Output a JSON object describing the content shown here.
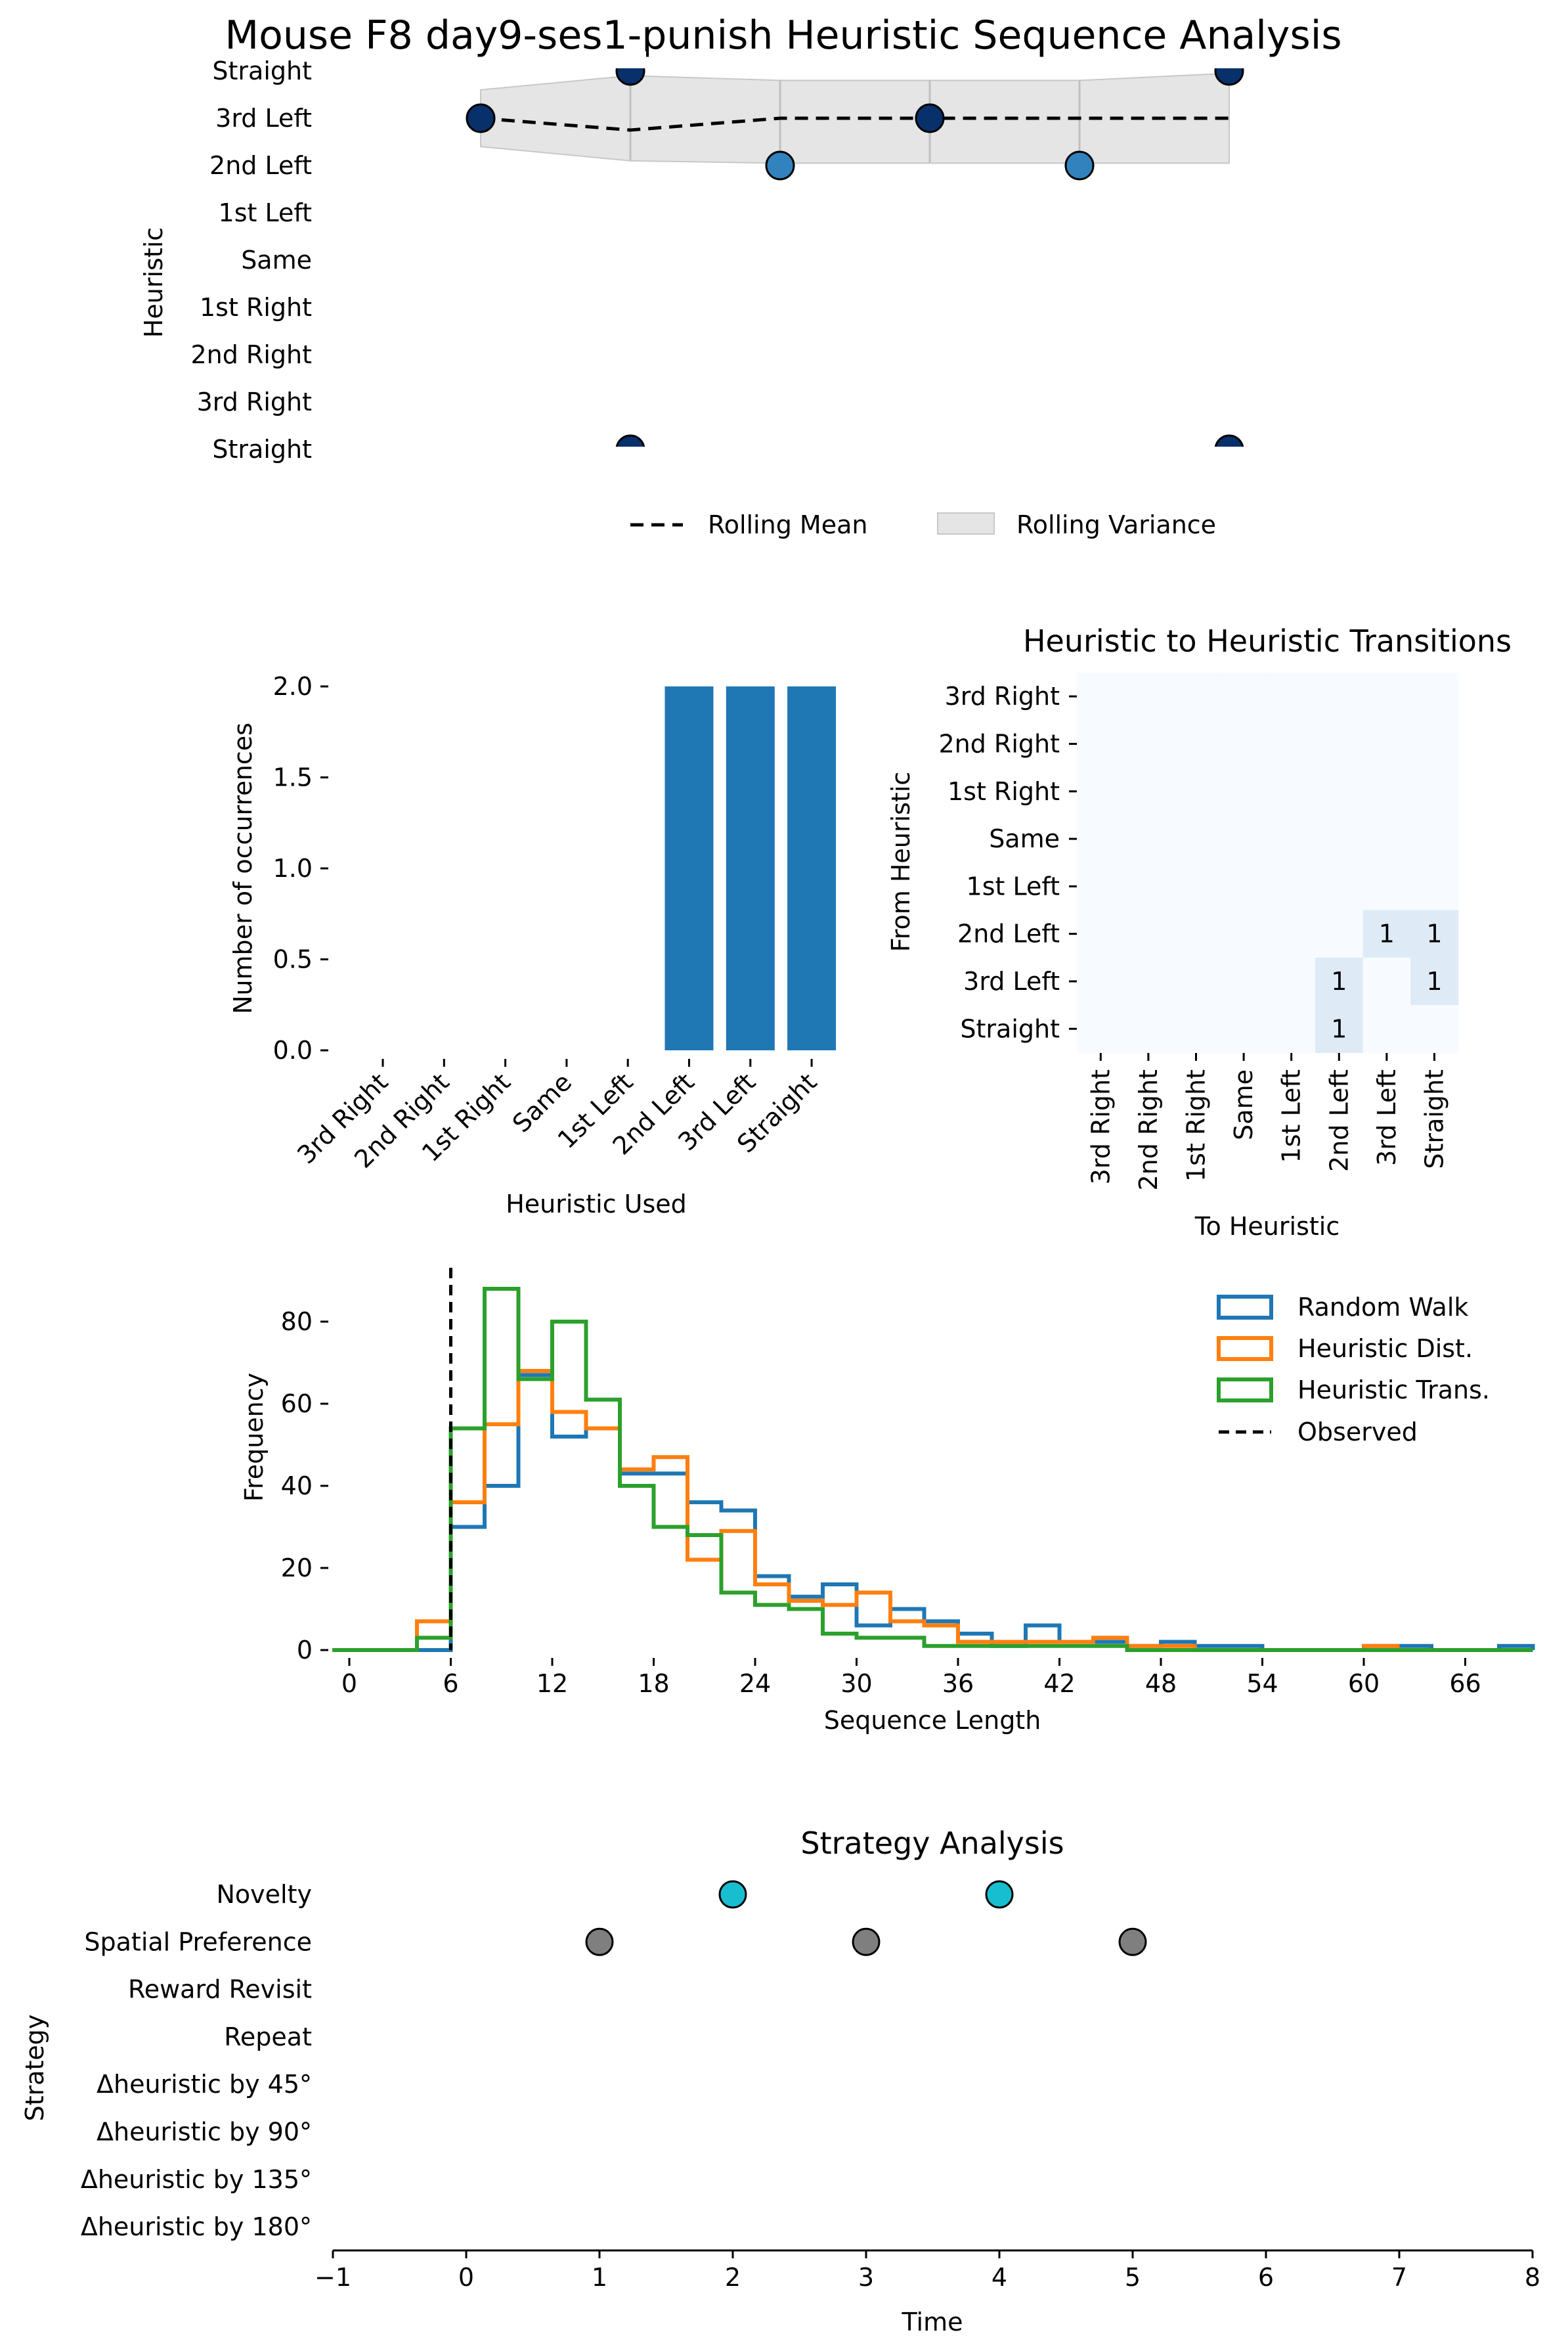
{
  "title": "Mouse F8 day9-ses1-punish Heuristic Sequence Analysis",
  "chart_data": [
    {
      "type": "line",
      "ylabel": "Heuristic",
      "y_categories": [
        "Straight",
        "3rd Left",
        "2nd Left",
        "1st Left",
        "Same",
        "1st Right",
        "2nd Right",
        "3rd Right",
        "Straight"
      ],
      "points": [
        {
          "x": 0,
          "y": "3rd Left",
          "color": "#08306b"
        },
        {
          "x": 1,
          "y": "Straight",
          "color": "#08306b"
        },
        {
          "x": 2,
          "y": "2nd Left",
          "color": "#3182bd"
        },
        {
          "x": 3,
          "y": "3rd Left",
          "color": "#08306b"
        },
        {
          "x": 4,
          "y": "2nd Left",
          "color": "#3182bd"
        },
        {
          "x": 5,
          "y": "Straight",
          "color": "#08306b"
        }
      ],
      "rolling_mean": [
        1.0,
        1.25,
        1.0,
        1.0,
        1.0,
        1.0
      ],
      "rolling_variance": [
        [
          0.4,
          1.6
        ],
        [
          0.1,
          1.9
        ],
        [
          0.2,
          1.95
        ],
        [
          0.2,
          1.95
        ],
        [
          0.2,
          1.95
        ],
        [
          0.05,
          1.95
        ]
      ],
      "legend": [
        "Rolling Mean",
        "Rolling Variance"
      ],
      "legend_position": "bottom-center"
    },
    {
      "type": "bar",
      "xlabel": "Heuristic Used",
      "ylabel": "Number of occurrences",
      "categories": [
        "3rd Right",
        "2nd Right",
        "1st Right",
        "Same",
        "1st Left",
        "2nd Left",
        "3rd Left",
        "Straight"
      ],
      "values": [
        0,
        0,
        0,
        0,
        0,
        2,
        2,
        2
      ],
      "ylim": [
        0,
        2.0
      ],
      "yticks": [
        "0.0",
        "0.5",
        "1.0",
        "1.5",
        "2.0"
      ],
      "color": "#1f77b4"
    },
    {
      "type": "heatmap",
      "title": "Heuristic to Heuristic Transitions",
      "xlabel": "To Heuristic",
      "ylabel": "From Heuristic",
      "rows": [
        "3rd Right",
        "2nd Right",
        "1st Right",
        "Same",
        "1st Left",
        "2nd Left",
        "3rd Left",
        "Straight"
      ],
      "cols": [
        "3rd Right",
        "2nd Right",
        "1st Right",
        "Same",
        "1st Left",
        "2nd Left",
        "3rd Left",
        "Straight"
      ],
      "values": [
        [
          0,
          0,
          0,
          0,
          0,
          0,
          0,
          0
        ],
        [
          0,
          0,
          0,
          0,
          0,
          0,
          0,
          0
        ],
        [
          0,
          0,
          0,
          0,
          0,
          0,
          0,
          0
        ],
        [
          0,
          0,
          0,
          0,
          0,
          0,
          0,
          0
        ],
        [
          0,
          0,
          0,
          0,
          0,
          0,
          0,
          0
        ],
        [
          0,
          0,
          0,
          0,
          0,
          0,
          1,
          1
        ],
        [
          0,
          0,
          0,
          0,
          0,
          1,
          0,
          1
        ],
        [
          0,
          0,
          0,
          0,
          0,
          1,
          0,
          0
        ]
      ],
      "annotation": "1",
      "colors": {
        "zero": "#f7fbff",
        "one": "#deebf7"
      }
    },
    {
      "type": "histogram",
      "xlabel": "Sequence Length",
      "ylabel": "Frequency",
      "bin_edges": [
        0,
        2,
        4,
        6,
        8,
        10,
        12,
        14,
        16,
        18,
        20,
        22,
        24,
        26,
        28,
        30,
        32,
        34,
        36,
        38,
        40,
        42,
        44,
        46,
        48,
        50,
        52,
        54,
        56,
        58,
        60,
        62,
        64,
        66,
        68
      ],
      "series": [
        {
          "name": "Random Walk",
          "color": "#1f77b4",
          "values": [
            0,
            0,
            0,
            30,
            40,
            67,
            52,
            54,
            43,
            43,
            36,
            34,
            18,
            13,
            16,
            6,
            10,
            7,
            4,
            1,
            6,
            2,
            2,
            1,
            2,
            1,
            1,
            0,
            0,
            0,
            1,
            1,
            0,
            0,
            1
          ]
        },
        {
          "name": "Heuristic Dist.",
          "color": "#ff7f0e",
          "values": [
            0,
            0,
            7,
            36,
            55,
            68,
            58,
            54,
            44,
            47,
            22,
            29,
            16,
            12,
            11,
            14,
            7,
            6,
            2,
            2,
            2,
            2,
            3,
            1,
            1,
            0,
            0,
            0,
            0,
            0,
            1,
            0,
            0,
            0,
            0
          ]
        },
        {
          "name": "Heuristic Trans.",
          "color": "#2ca02c",
          "values": [
            0,
            0,
            3,
            54,
            88,
            66,
            80,
            61,
            40,
            30,
            28,
            14,
            11,
            10,
            4,
            3,
            3,
            1,
            1,
            1,
            1,
            1,
            1,
            0,
            0,
            0,
            0,
            0,
            0,
            0,
            0,
            0,
            0,
            0,
            0
          ]
        }
      ],
      "observed": {
        "name": "Observed",
        "x": 6
      },
      "xticks": [
        0,
        6,
        12,
        18,
        24,
        30,
        36,
        42,
        48,
        54,
        60,
        66
      ],
      "yticks": [
        0,
        20,
        40,
        60,
        80
      ],
      "xlim": [
        -1,
        69
      ],
      "ylim": [
        0,
        93
      ],
      "legend_position": "top-right"
    },
    {
      "type": "scatter",
      "title": "Strategy Analysis",
      "xlabel": "Time",
      "ylabel": "Strategy",
      "y_categories": [
        "Novelty",
        "Spatial Preference",
        "Reward Revisit",
        "Repeat",
        "Δheuristic by 45°",
        "Δheuristic by 90°",
        "Δheuristic by 135°",
        "Δheuristic by 180°"
      ],
      "points": [
        {
          "x": 1,
          "y": "Spatial Preference",
          "color": "#7f7f7f"
        },
        {
          "x": 2,
          "y": "Novelty",
          "color": "#17becf"
        },
        {
          "x": 3,
          "y": "Spatial Preference",
          "color": "#7f7f7f"
        },
        {
          "x": 4,
          "y": "Novelty",
          "color": "#17becf"
        },
        {
          "x": 5,
          "y": "Spatial Preference",
          "color": "#7f7f7f"
        }
      ],
      "xlim": [
        -1,
        8
      ],
      "xticks": [
        "−1",
        "0",
        "1",
        "2",
        "3",
        "4",
        "5",
        "6",
        "7",
        "8"
      ]
    }
  ]
}
